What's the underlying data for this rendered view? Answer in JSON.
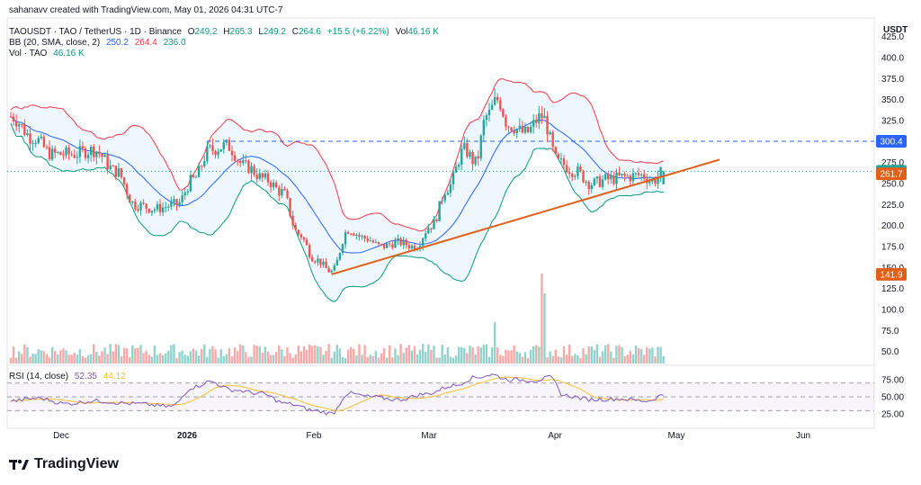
{
  "header": {
    "credit": "sahanavv created with TradingView.com, May 01, 2026 04:31 UTC-7",
    "symbol": "TAOUSDT · TAO / TetherUS · 1D · Binance",
    "ohlc": {
      "O_label": "O",
      "O": "249.2",
      "H_label": "H",
      "H": "265.3",
      "L_label": "L",
      "L": "249.2",
      "C_label": "C",
      "C": "264.6",
      "change": "+15.5 (+6.22%)",
      "vol_label": "Vol",
      "vol": "46.16 K"
    },
    "bb": {
      "label": "BB (20, SMA, close, 2)",
      "basis": "250.2",
      "upper": "264.4",
      "lower": "236.0"
    },
    "vol_ind": {
      "label": "Vol · TAO",
      "value": "46.16 K"
    },
    "rsi": {
      "label": "RSI (14, close)",
      "value": "52.35",
      "ma": "44.12"
    }
  },
  "brand": {
    "name": "TradingView"
  },
  "colors": {
    "up": "#26a69a",
    "down": "#ef5350",
    "bb_basis": "#2962ff",
    "bb_upper": "#f23645",
    "bb_lower": "#089981",
    "trendline": "#e0601a",
    "resistance": "#2962ff",
    "rsi": "#7e57c2",
    "rsi_ma": "#fbc02d"
  },
  "chart_data": {
    "type": "candlestick",
    "price_axis": {
      "unit": "USDT",
      "ticks": [
        "425.0",
        "400.0",
        "375.0",
        "350.0",
        "325.0",
        "300.0",
        "275.0",
        "250.0",
        "225.0",
        "200.0",
        "175.0",
        "150.0",
        "125.0",
        "100.0",
        "75.0",
        "50.0"
      ],
      "ylim": [
        40,
        445
      ]
    },
    "time_axis": {
      "labels": [
        "Dec",
        "2026",
        "Feb",
        "Mar",
        "Apr",
        "May",
        "Jun"
      ]
    },
    "price_labels": [
      {
        "value": 300.4,
        "text": "300.4",
        "color": "#2962ff"
      },
      {
        "value": 264.6,
        "text": "264.6",
        "color": "#26a69a"
      },
      {
        "value": 261.7,
        "text": "261.7",
        "color": "#e0601a"
      },
      {
        "value": 141.9,
        "text": "141.9",
        "color": "#e0601a"
      }
    ],
    "resistance_level": 300.4,
    "trendline": {
      "from": {
        "day": 116,
        "price": 141.9
      },
      "to": {
        "day": 239,
        "price": 261.7
      }
    },
    "candles_key_points": [
      [
        0,
        330
      ],
      [
        8,
        305
      ],
      [
        15,
        285
      ],
      [
        22,
        285
      ],
      [
        30,
        290
      ],
      [
        38,
        265
      ],
      [
        45,
        225
      ],
      [
        52,
        220
      ],
      [
        60,
        225
      ],
      [
        66,
        255
      ],
      [
        72,
        290
      ],
      [
        78,
        295
      ],
      [
        85,
        270
      ],
      [
        92,
        255
      ],
      [
        98,
        240
      ],
      [
        104,
        190
      ],
      [
        110,
        160
      ],
      [
        116,
        145
      ],
      [
        122,
        195
      ],
      [
        128,
        185
      ],
      [
        134,
        175
      ],
      [
        140,
        180
      ],
      [
        146,
        175
      ],
      [
        152,
        200
      ],
      [
        158,
        245
      ],
      [
        164,
        290
      ],
      [
        168,
        275
      ],
      [
        172,
        330
      ],
      [
        176,
        350
      ],
      [
        180,
        320
      ],
      [
        186,
        310
      ],
      [
        192,
        330
      ],
      [
        198,
        275
      ],
      [
        204,
        265
      ],
      [
        210,
        250
      ],
      [
        216,
        255
      ],
      [
        222,
        258
      ],
      [
        228,
        260
      ],
      [
        232,
        253
      ],
      [
        236,
        264.6
      ]
    ],
    "volume_axis": {
      "max": 1000
    },
    "volume_spikes": [
      {
        "day": 175,
        "value": 460
      },
      {
        "day": 192,
        "value": 1000
      },
      {
        "day": 193,
        "value": 780
      }
    ],
    "rsi_axis": {
      "ticks": [
        "75.00",
        "50.00",
        "25.00"
      ],
      "upper_band": 70,
      "lower_band": 30,
      "mid": 50
    },
    "rsi_key_points": [
      [
        0,
        44
      ],
      [
        10,
        48
      ],
      [
        20,
        40
      ],
      [
        30,
        44
      ],
      [
        45,
        40
      ],
      [
        58,
        36
      ],
      [
        66,
        64
      ],
      [
        72,
        72
      ],
      [
        80,
        60
      ],
      [
        90,
        55
      ],
      [
        100,
        40
      ],
      [
        110,
        30
      ],
      [
        116,
        26
      ],
      [
        122,
        55
      ],
      [
        130,
        50
      ],
      [
        140,
        46
      ],
      [
        150,
        54
      ],
      [
        160,
        66
      ],
      [
        168,
        78
      ],
      [
        174,
        82
      ],
      [
        180,
        75
      ],
      [
        190,
        74
      ],
      [
        195,
        78
      ],
      [
        200,
        52
      ],
      [
        210,
        46
      ],
      [
        220,
        47
      ],
      [
        230,
        44
      ],
      [
        236,
        52.35
      ]
    ]
  }
}
